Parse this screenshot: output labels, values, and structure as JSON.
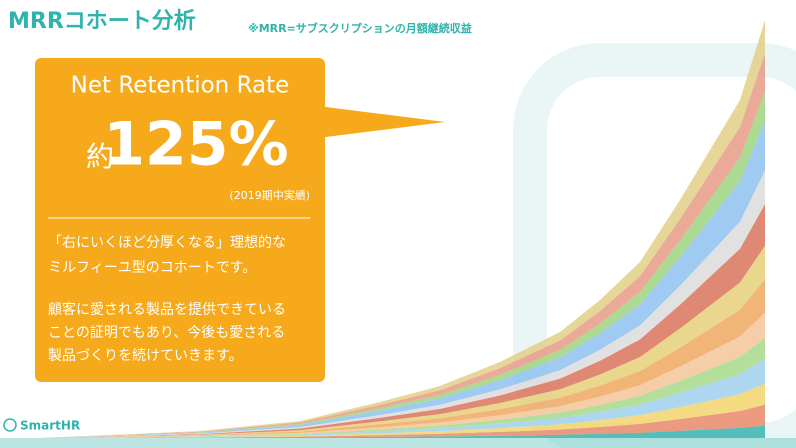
{
  "header": {
    "title": "MRRコホート分析",
    "note": "※MRR=サブスクリプションの月額継続収益"
  },
  "callout": {
    "heading": "Net Retention Rate",
    "prefix": "約",
    "value": "125%",
    "period": "(2019期中実績)",
    "paragraphs": [
      [
        "「右にいくほど分厚くなる」理想的な",
        "ミルフィーユ型のコホートです。"
      ],
      [
        "顧客に愛される製品を提供できている",
        "ことの証明でもあり、今後も愛される",
        "製品づくりを続けていきます。"
      ]
    ]
  },
  "logo": "SmartHR"
}
